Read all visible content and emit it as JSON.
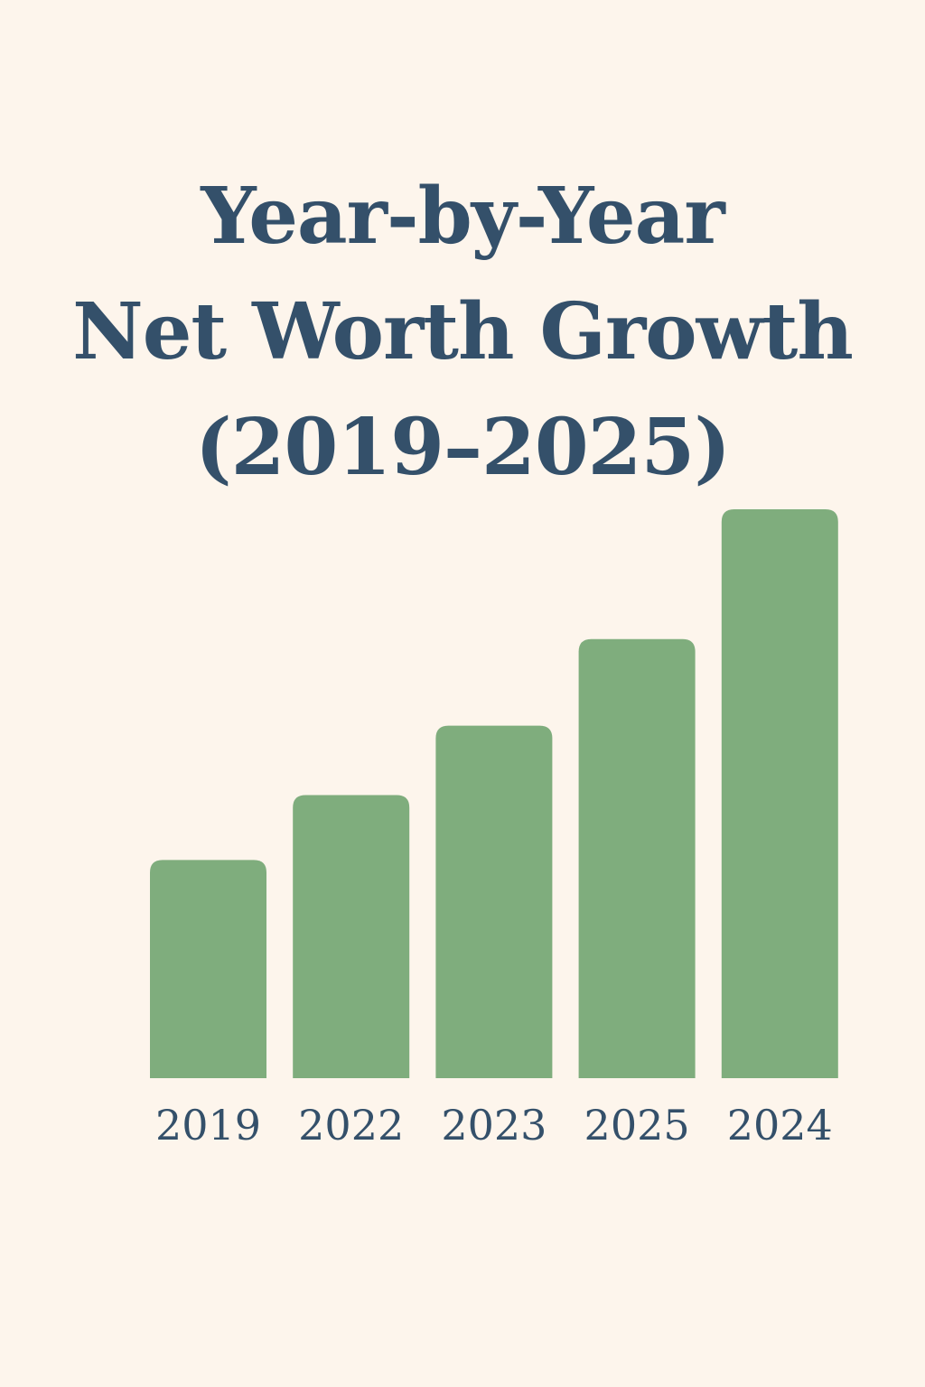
{
  "title_lines": [
    "Year-by-Year",
    "Net Worth Growth",
    "(2019–2025)"
  ],
  "colors": {
    "background": "#fdf5ec",
    "bar": "#7fad7d",
    "text": "#34506a"
  },
  "chart_data": {
    "type": "bar",
    "title": "Year-by-Year Net Worth Growth (2019–2025)",
    "xlabel": "",
    "ylabel": "",
    "categories": [
      "2019",
      "2022",
      "2023",
      "2025",
      "2024"
    ],
    "values": [
      242,
      314,
      391,
      487,
      631
    ],
    "ylim": [
      0,
      631
    ],
    "grid": false,
    "legend": "none",
    "axes_visible": false
  }
}
